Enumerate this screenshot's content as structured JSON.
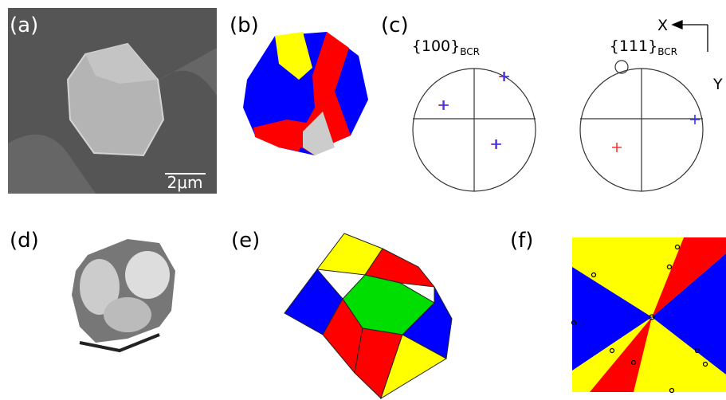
{
  "panels": [
    {
      "label": "(a)",
      "scale_bar": "2μm"
    },
    {
      "label": "(b)"
    },
    {
      "label": "(c)",
      "pole_figures": [
        {
          "title": "{100}",
          "subscript": "BCR"
        },
        {
          "title": "{111}",
          "subscript": "BCR"
        }
      ],
      "axes": [
        "X",
        "Y"
      ]
    },
    {
      "label": "(d)"
    },
    {
      "label": "(e)"
    },
    {
      "label": "(f)"
    }
  ]
}
